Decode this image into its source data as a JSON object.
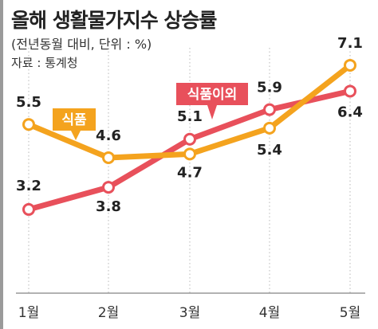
{
  "header": {
    "title": "올해 생활물가지수 상승률",
    "subtitle": "(전년동월 대비, 단위 : %)",
    "source": "자료 : 통계청"
  },
  "chart_data": {
    "type": "line",
    "categories": [
      "1월",
      "2월",
      "3월",
      "4월",
      "5월"
    ],
    "series": [
      {
        "name": "식품",
        "values": [
          5.5,
          4.6,
          4.7,
          5.4,
          7.1
        ],
        "color": "#f4a31e"
      },
      {
        "name": "식품이외",
        "values": [
          3.2,
          3.8,
          5.1,
          5.9,
          6.4
        ],
        "color": "#e8505b"
      }
    ],
    "grid": "vertical dotted",
    "legend": "callout labels"
  }
}
